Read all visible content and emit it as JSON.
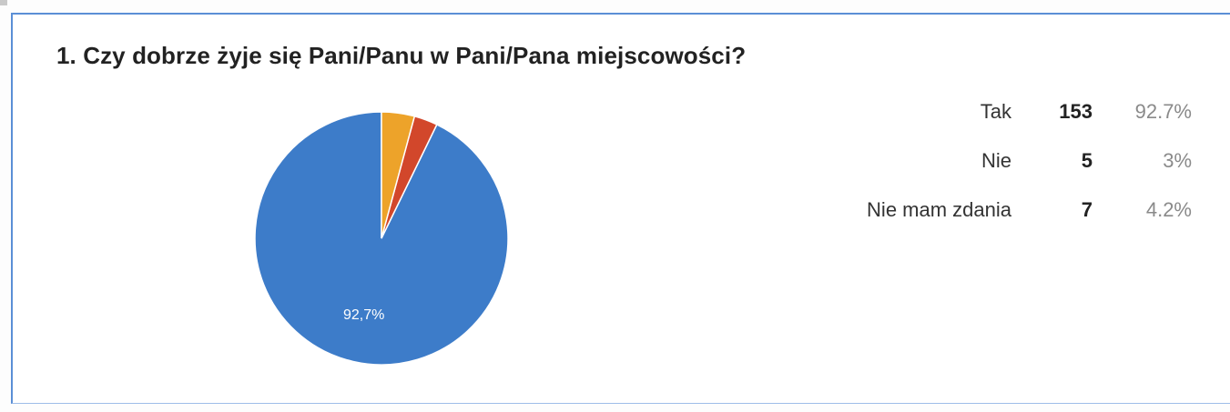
{
  "question": {
    "title": "1. Czy dobrze żyje się Pani/Panu w Pani/Pana miejscowości?"
  },
  "colors": {
    "tak": "#3d7cc9",
    "nie": "#d2472b",
    "nie_mam_zdania": "#eda32a",
    "panel_border": "#5b8fd6"
  },
  "chart_data": {
    "type": "pie",
    "title": "1. Czy dobrze żyje się Pani/Panu w Pani/Pana miejscowości?",
    "start_angle_deg": 90,
    "direction": "counterclockwise",
    "slices": [
      {
        "label": "Tak",
        "count": 153,
        "percent": 92.7,
        "percent_text": "92.7%",
        "slice_label": "92,7%",
        "color": "#3d7cc9"
      },
      {
        "label": "Nie",
        "count": 5,
        "percent": 3.0,
        "percent_text": "3%",
        "slice_label": "",
        "color": "#d2472b"
      },
      {
        "label": "Nie mam zdania",
        "count": 7,
        "percent": 4.2,
        "percent_text": "4.2%",
        "slice_label": "",
        "color": "#eda32a"
      }
    ],
    "legend_placement": "right"
  }
}
